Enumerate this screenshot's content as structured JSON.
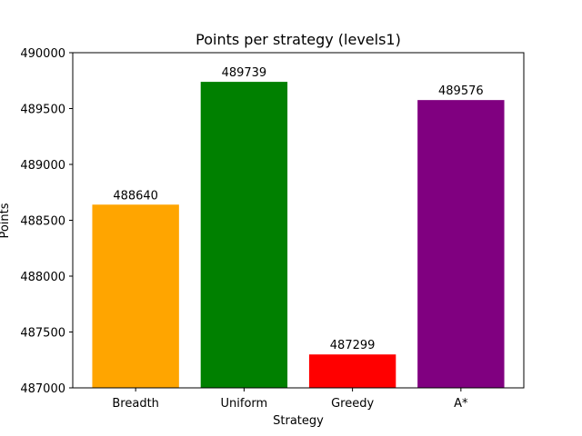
{
  "chart_data": {
    "type": "bar",
    "title": "Points per strategy (levels1)",
    "xlabel": "Strategy",
    "ylabel": "Points",
    "categories": [
      "Breadth",
      "Uniform",
      "Greedy",
      "A*"
    ],
    "values": [
      488640,
      489739,
      487299,
      489576
    ],
    "data_labels": [
      "488640",
      "489739",
      "487299",
      "489576"
    ],
    "colors": [
      "#ffa500",
      "#008000",
      "#ff0000",
      "#800080"
    ],
    "ylim": [
      487000,
      490000
    ],
    "yticks": [
      487000,
      487500,
      488000,
      488500,
      489000,
      489500,
      490000
    ],
    "ytick_labels": [
      "487000",
      "487500",
      "488000",
      "488500",
      "489000",
      "489500",
      "490000"
    ],
    "grid": false,
    "legend": "none"
  }
}
